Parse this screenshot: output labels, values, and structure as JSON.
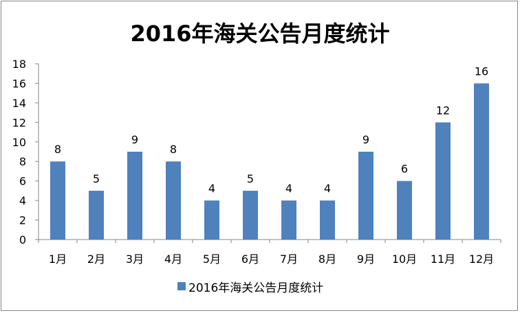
{
  "chart_data": {
    "type": "bar",
    "title": "2016年海关公告月度统计",
    "categories": [
      "1月",
      "2月",
      "3月",
      "4月",
      "5月",
      "6月",
      "7月",
      "8月",
      "9月",
      "10月",
      "11月",
      "12月"
    ],
    "series": [
      {
        "name": "2016年海关公告月度统计",
        "values": [
          8,
          5,
          9,
          8,
          4,
          5,
          4,
          4,
          9,
          6,
          12,
          16
        ]
      }
    ],
    "ylim": [
      0,
      18
    ],
    "yticks": [
      0,
      2,
      4,
      6,
      8,
      10,
      12,
      14,
      16,
      18
    ],
    "grid": false,
    "data_labels": true,
    "legend_position": "bottom",
    "colors": {
      "bar": "#4f81bd",
      "axis": "#868686"
    }
  }
}
